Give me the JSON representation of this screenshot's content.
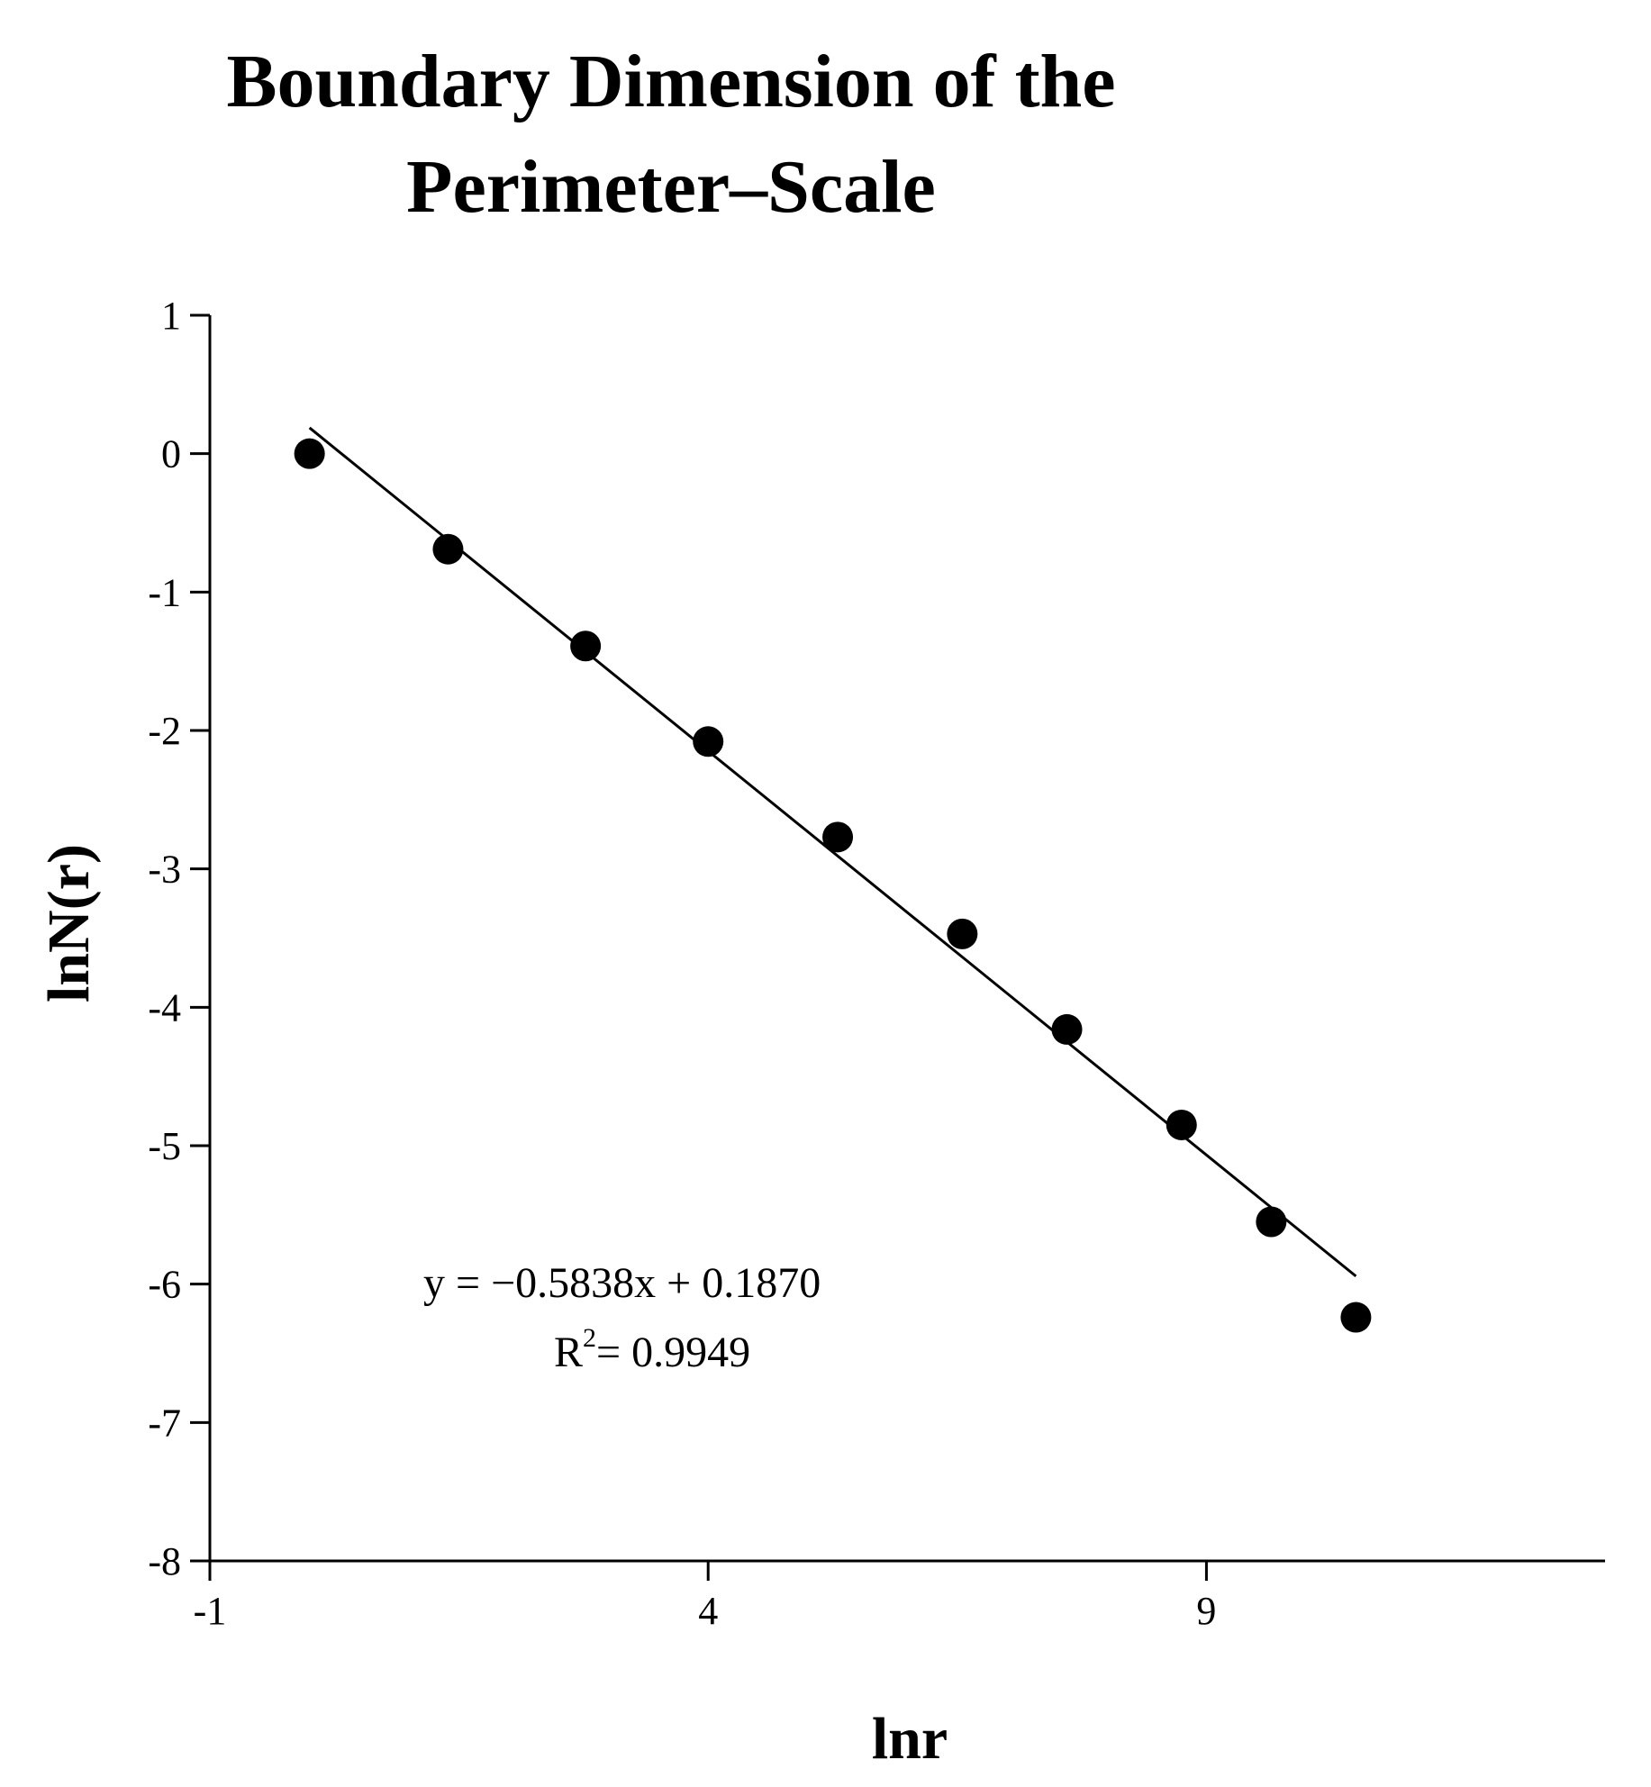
{
  "chart_data": {
    "type": "scatter",
    "title_lines": [
      "Boundary Dimension of the",
      "Perimeter–Scale"
    ],
    "xlabel": "lnr",
    "ylabel": "lnN(r)",
    "xlim": [
      -1,
      13
    ],
    "ylim": [
      -8,
      1
    ],
    "x_ticks": [
      -1,
      4,
      9
    ],
    "y_ticks": [
      1,
      0,
      -1,
      -2,
      -3,
      -4,
      -5,
      -6,
      -7,
      -8
    ],
    "grid": false,
    "legend": "none",
    "points": [
      {
        "x": 0.0,
        "y": 0.0
      },
      {
        "x": 1.39,
        "y": -0.69
      },
      {
        "x": 2.77,
        "y": -1.39
      },
      {
        "x": 4.0,
        "y": -2.08
      },
      {
        "x": 5.3,
        "y": -2.77
      },
      {
        "x": 6.55,
        "y": -3.47
      },
      {
        "x": 7.6,
        "y": -4.16
      },
      {
        "x": 8.75,
        "y": -4.85
      },
      {
        "x": 9.65,
        "y": -5.55
      },
      {
        "x": 10.5,
        "y": -6.24
      }
    ],
    "fit_line": {
      "slope": -0.5838,
      "intercept": 0.187,
      "x_start": 0.0,
      "x_end": 10.5
    },
    "annotation": {
      "equation": "y = −0.5838x + 0.1870",
      "r_squared_label": "R",
      "r_squared_sup": "2",
      "r_squared_value": "= 0.9949"
    },
    "colors": {
      "points": "#000000",
      "line": "#000000"
    }
  }
}
